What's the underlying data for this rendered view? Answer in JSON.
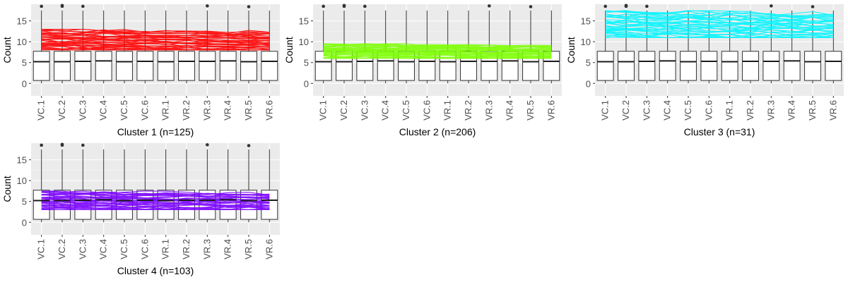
{
  "chart_data": [
    {
      "type": "box",
      "title": "",
      "xlabel": "Cluster 1 (n=125)",
      "ylabel": "Count",
      "categories": [
        "VC.1",
        "VC.2",
        "VC.3",
        "VC.4",
        "VC.5",
        "VC.6",
        "VR.1",
        "VR.2",
        "VR.3",
        "VR.4",
        "VR.5",
        "VR.6"
      ],
      "yticks": [
        0,
        5,
        10,
        15
      ],
      "ylim": [
        -3,
        19
      ],
      "grid": true,
      "overlay_color": "#ff0000",
      "overlay_range": [
        8,
        13
      ],
      "boxes": [
        {
          "q1": 0.7,
          "median": 5.2,
          "q3": 7.7,
          "whisker_low": 0,
          "whisker_high": 17.5,
          "outliers": [
            18.5
          ]
        },
        {
          "q1": 0.7,
          "median": 5.2,
          "q3": 7.7,
          "whisker_low": 0,
          "whisker_high": 17.5,
          "outliers": [
            18.5,
            18.7
          ]
        },
        {
          "q1": 0.7,
          "median": 5.3,
          "q3": 7.7,
          "whisker_low": 0,
          "whisker_high": 17.5,
          "outliers": [
            18.5
          ]
        },
        {
          "q1": 0.7,
          "median": 5.4,
          "q3": 7.7,
          "whisker_low": 0,
          "whisker_high": 17.5,
          "outliers": []
        },
        {
          "q1": 0.7,
          "median": 5.2,
          "q3": 7.7,
          "whisker_low": 0,
          "whisker_high": 17.5,
          "outliers": []
        },
        {
          "q1": 0.7,
          "median": 5.3,
          "q3": 7.7,
          "whisker_low": 0,
          "whisker_high": 17.5,
          "outliers": []
        },
        {
          "q1": 0.7,
          "median": 5.2,
          "q3": 7.7,
          "whisker_low": 0,
          "whisker_high": 17.5,
          "outliers": []
        },
        {
          "q1": 0.7,
          "median": 5.3,
          "q3": 7.7,
          "whisker_low": 0,
          "whisker_high": 17.5,
          "outliers": []
        },
        {
          "q1": 0.7,
          "median": 5.3,
          "q3": 7.7,
          "whisker_low": 0,
          "whisker_high": 17.5,
          "outliers": [
            18.6
          ]
        },
        {
          "q1": 0.7,
          "median": 5.4,
          "q3": 7.7,
          "whisker_low": 0,
          "whisker_high": 17.5,
          "outliers": []
        },
        {
          "q1": 0.7,
          "median": 5.2,
          "q3": 7.7,
          "whisker_low": 0,
          "whisker_high": 17.5,
          "outliers": [
            18.4
          ]
        },
        {
          "q1": 0.7,
          "median": 5.3,
          "q3": 7.7,
          "whisker_low": 0,
          "whisker_high": 17.5,
          "outliers": []
        }
      ]
    },
    {
      "type": "box",
      "title": "",
      "xlabel": "Cluster 2 (n=206)",
      "ylabel": "Count",
      "categories": [
        "VC.1",
        "VC.2",
        "VC.3",
        "VC.4",
        "VC.5",
        "VC.6",
        "VR.1",
        "VR.2",
        "VR.3",
        "VR.4",
        "VR.5",
        "VR.6"
      ],
      "yticks": [
        0,
        5,
        10,
        15
      ],
      "ylim": [
        -3,
        19
      ],
      "grid": true,
      "overlay_color": "#7cff00",
      "overlay_range": [
        6,
        9.5
      ],
      "boxes": [
        {
          "q1": 0.7,
          "median": 5.2,
          "q3": 7.7,
          "whisker_low": 0,
          "whisker_high": 17.5,
          "outliers": [
            18.5
          ]
        },
        {
          "q1": 0.7,
          "median": 5.2,
          "q3": 7.7,
          "whisker_low": 0,
          "whisker_high": 17.5,
          "outliers": [
            18.5,
            18.7
          ]
        },
        {
          "q1": 0.7,
          "median": 5.3,
          "q3": 7.7,
          "whisker_low": 0,
          "whisker_high": 17.5,
          "outliers": [
            18.5
          ]
        },
        {
          "q1": 0.7,
          "median": 5.4,
          "q3": 7.7,
          "whisker_low": 0,
          "whisker_high": 17.5,
          "outliers": []
        },
        {
          "q1": 0.7,
          "median": 5.2,
          "q3": 7.7,
          "whisker_low": 0,
          "whisker_high": 17.5,
          "outliers": []
        },
        {
          "q1": 0.7,
          "median": 5.3,
          "q3": 7.7,
          "whisker_low": 0,
          "whisker_high": 17.5,
          "outliers": []
        },
        {
          "q1": 0.7,
          "median": 5.2,
          "q3": 7.7,
          "whisker_low": 0,
          "whisker_high": 17.5,
          "outliers": []
        },
        {
          "q1": 0.7,
          "median": 5.3,
          "q3": 7.7,
          "whisker_low": 0,
          "whisker_high": 17.5,
          "outliers": []
        },
        {
          "q1": 0.7,
          "median": 5.3,
          "q3": 7.7,
          "whisker_low": 0,
          "whisker_high": 17.5,
          "outliers": [
            18.6
          ]
        },
        {
          "q1": 0.7,
          "median": 5.4,
          "q3": 7.7,
          "whisker_low": 0,
          "whisker_high": 17.5,
          "outliers": []
        },
        {
          "q1": 0.7,
          "median": 5.2,
          "q3": 7.7,
          "whisker_low": 0,
          "whisker_high": 17.5,
          "outliers": [
            18.4
          ]
        },
        {
          "q1": 0.7,
          "median": 5.3,
          "q3": 7.7,
          "whisker_low": 0,
          "whisker_high": 17.5,
          "outliers": []
        }
      ]
    },
    {
      "type": "box",
      "title": "",
      "xlabel": "Cluster 3 (n=31)",
      "ylabel": "Count",
      "categories": [
        "VC.1",
        "VC.2",
        "VC.3",
        "VC.4",
        "VC.5",
        "VC.6",
        "VR.1",
        "VR.2",
        "VR.3",
        "VR.4",
        "VR.5",
        "VR.6"
      ],
      "yticks": [
        0,
        5,
        10,
        15
      ],
      "ylim": [
        -3,
        19
      ],
      "grid": true,
      "overlay_color": "#00f5ff",
      "overlay_range": [
        11,
        17.5
      ],
      "boxes": [
        {
          "q1": 0.7,
          "median": 5.2,
          "q3": 7.7,
          "whisker_low": 0,
          "whisker_high": 17.5,
          "outliers": [
            18.5
          ]
        },
        {
          "q1": 0.7,
          "median": 5.2,
          "q3": 7.7,
          "whisker_low": 0,
          "whisker_high": 17.5,
          "outliers": [
            18.5,
            18.7
          ]
        },
        {
          "q1": 0.7,
          "median": 5.3,
          "q3": 7.7,
          "whisker_low": 0,
          "whisker_high": 17.5,
          "outliers": [
            18.5
          ]
        },
        {
          "q1": 0.7,
          "median": 5.4,
          "q3": 7.7,
          "whisker_low": 0,
          "whisker_high": 17.5,
          "outliers": []
        },
        {
          "q1": 0.7,
          "median": 5.2,
          "q3": 7.7,
          "whisker_low": 0,
          "whisker_high": 17.5,
          "outliers": []
        },
        {
          "q1": 0.7,
          "median": 5.3,
          "q3": 7.7,
          "whisker_low": 0,
          "whisker_high": 17.5,
          "outliers": []
        },
        {
          "q1": 0.7,
          "median": 5.2,
          "q3": 7.7,
          "whisker_low": 0,
          "whisker_high": 17.5,
          "outliers": []
        },
        {
          "q1": 0.7,
          "median": 5.3,
          "q3": 7.7,
          "whisker_low": 0,
          "whisker_high": 17.5,
          "outliers": []
        },
        {
          "q1": 0.7,
          "median": 5.3,
          "q3": 7.7,
          "whisker_low": 0,
          "whisker_high": 17.5,
          "outliers": [
            18.6
          ]
        },
        {
          "q1": 0.7,
          "median": 5.4,
          "q3": 7.7,
          "whisker_low": 0,
          "whisker_high": 17.5,
          "outliers": []
        },
        {
          "q1": 0.7,
          "median": 5.2,
          "q3": 7.7,
          "whisker_low": 0,
          "whisker_high": 17.5,
          "outliers": [
            18.4
          ]
        },
        {
          "q1": 0.7,
          "median": 5.3,
          "q3": 7.7,
          "whisker_low": 0,
          "whisker_high": 17.5,
          "outliers": []
        }
      ]
    },
    {
      "type": "box",
      "title": "",
      "xlabel": "Cluster 4 (n=103)",
      "ylabel": "Count",
      "categories": [
        "VC.1",
        "VC.2",
        "VC.3",
        "VC.4",
        "VC.5",
        "VC.6",
        "VR.1",
        "VR.2",
        "VR.3",
        "VR.4",
        "VR.5",
        "VR.6"
      ],
      "yticks": [
        0,
        5,
        10,
        15
      ],
      "ylim": [
        -3,
        19
      ],
      "grid": true,
      "overlay_color": "#7a00ff",
      "overlay_range": [
        3,
        7.5
      ],
      "boxes": [
        {
          "q1": 0.7,
          "median": 5.2,
          "q3": 7.7,
          "whisker_low": 0,
          "whisker_high": 17.5,
          "outliers": [
            18.5
          ]
        },
        {
          "q1": 0.7,
          "median": 5.2,
          "q3": 7.7,
          "whisker_low": 0,
          "whisker_high": 17.5,
          "outliers": [
            18.5,
            18.7
          ]
        },
        {
          "q1": 0.7,
          "median": 5.3,
          "q3": 7.7,
          "whisker_low": 0,
          "whisker_high": 17.5,
          "outliers": [
            18.5
          ]
        },
        {
          "q1": 0.7,
          "median": 5.4,
          "q3": 7.7,
          "whisker_low": 0,
          "whisker_high": 17.5,
          "outliers": []
        },
        {
          "q1": 0.7,
          "median": 5.2,
          "q3": 7.7,
          "whisker_low": 0,
          "whisker_high": 17.5,
          "outliers": []
        },
        {
          "q1": 0.7,
          "median": 5.3,
          "q3": 7.7,
          "whisker_low": 0,
          "whisker_high": 17.5,
          "outliers": []
        },
        {
          "q1": 0.7,
          "median": 5.2,
          "q3": 7.7,
          "whisker_low": 0,
          "whisker_high": 17.5,
          "outliers": []
        },
        {
          "q1": 0.7,
          "median": 5.3,
          "q3": 7.7,
          "whisker_low": 0,
          "whisker_high": 17.5,
          "outliers": []
        },
        {
          "q1": 0.7,
          "median": 5.3,
          "q3": 7.7,
          "whisker_low": 0,
          "whisker_high": 17.5,
          "outliers": [
            18.6
          ]
        },
        {
          "q1": 0.7,
          "median": 5.4,
          "q3": 7.7,
          "whisker_low": 0,
          "whisker_high": 17.5,
          "outliers": []
        },
        {
          "q1": 0.7,
          "median": 5.2,
          "q3": 7.7,
          "whisker_low": 0,
          "whisker_high": 17.5,
          "outliers": [
            18.4
          ]
        },
        {
          "q1": 0.7,
          "median": 5.3,
          "q3": 7.7,
          "whisker_low": 0,
          "whisker_high": 17.5,
          "outliers": []
        }
      ]
    }
  ]
}
